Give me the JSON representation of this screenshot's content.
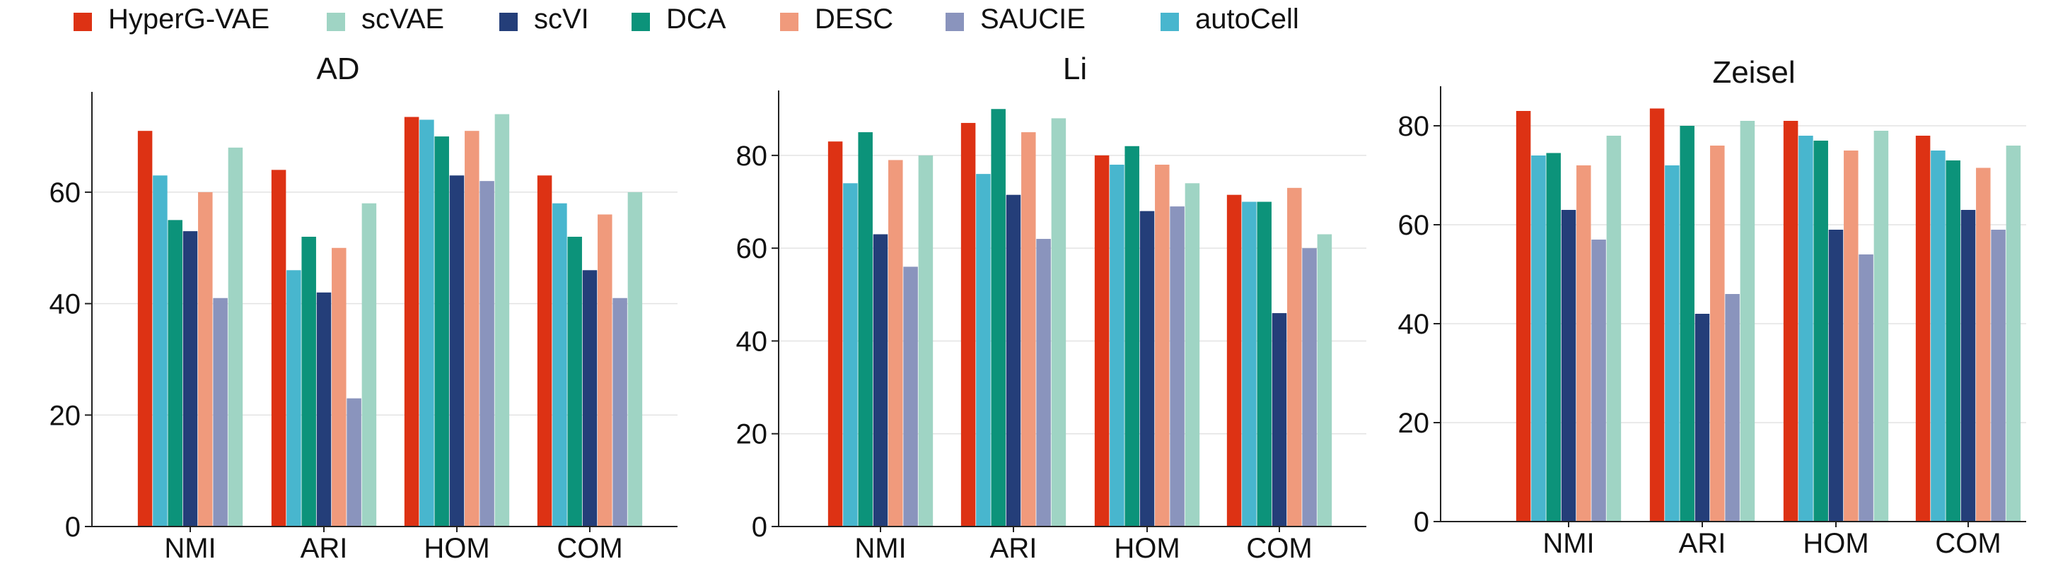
{
  "legend": {
    "placement": "top",
    "items": [
      {
        "label": "HyperG-VAE",
        "color": "#dd3214"
      },
      {
        "label": "scVAE",
        "color": "#9fd4c4"
      },
      {
        "label": "scVI",
        "color": "#243e79"
      },
      {
        "label": "DCA",
        "color": "#0c937a"
      },
      {
        "label": "DESC",
        "color": "#f09a7c"
      },
      {
        "label": "SAUCIE",
        "color": "#8a94bd"
      },
      {
        "label": "autoCell",
        "color": "#48b6ce"
      }
    ]
  },
  "chart_data": [
    {
      "type": "bar",
      "title": "AD",
      "categories": [
        "NMI",
        "ARI",
        "HOM",
        "COM"
      ],
      "ylim": [
        0,
        78
      ],
      "yticks": [
        0,
        20,
        40,
        60
      ],
      "grid": true,
      "series": [
        {
          "name": "HyperG-VAE",
          "values": [
            71,
            64,
            73.5,
            63
          ]
        },
        {
          "name": "autoCell",
          "values": [
            63,
            46,
            73,
            58
          ]
        },
        {
          "name": "DCA",
          "values": [
            55,
            52,
            70,
            52
          ]
        },
        {
          "name": "scVI",
          "values": [
            53,
            42,
            63,
            46
          ]
        },
        {
          "name": "DESC",
          "values": [
            60,
            50,
            71,
            56
          ]
        },
        {
          "name": "SAUCIE",
          "values": [
            41,
            23,
            62,
            41
          ]
        },
        {
          "name": "scVAE",
          "values": [
            68,
            58,
            74,
            60
          ]
        }
      ]
    },
    {
      "type": "bar",
      "title": "Li",
      "categories": [
        "NMI",
        "ARI",
        "HOM",
        "COM"
      ],
      "ylim": [
        0,
        94
      ],
      "yticks": [
        0,
        20,
        40,
        60,
        80
      ],
      "grid": true,
      "series": [
        {
          "name": "HyperG-VAE",
          "values": [
            83,
            87,
            80,
            71.5
          ]
        },
        {
          "name": "autoCell",
          "values": [
            74,
            76,
            78,
            70
          ]
        },
        {
          "name": "DCA",
          "values": [
            85,
            90,
            82,
            70
          ]
        },
        {
          "name": "scVI",
          "values": [
            63,
            71.5,
            68,
            46
          ]
        },
        {
          "name": "DESC",
          "values": [
            79,
            85,
            78,
            73
          ]
        },
        {
          "name": "SAUCIE",
          "values": [
            56,
            62,
            69,
            60
          ]
        },
        {
          "name": "scVAE",
          "values": [
            80,
            88,
            74,
            63
          ]
        }
      ]
    },
    {
      "type": "bar",
      "title": "Zeisel",
      "categories": [
        "NMI",
        "ARI",
        "HOM",
        "COM"
      ],
      "ylim": [
        0,
        88
      ],
      "yticks": [
        0,
        20,
        40,
        60,
        80
      ],
      "grid": true,
      "series": [
        {
          "name": "HyperG-VAE",
          "values": [
            83,
            83.5,
            81,
            78
          ]
        },
        {
          "name": "autoCell",
          "values": [
            74,
            72,
            78,
            75
          ]
        },
        {
          "name": "DCA",
          "values": [
            74.5,
            80,
            77,
            73
          ]
        },
        {
          "name": "scVI",
          "values": [
            63,
            42,
            59,
            63
          ]
        },
        {
          "name": "DESC",
          "values": [
            72,
            76,
            75,
            71.5
          ]
        },
        {
          "name": "SAUCIE",
          "values": [
            57,
            46,
            54,
            59
          ]
        },
        {
          "name": "scVAE",
          "values": [
            78,
            81,
            79,
            76
          ]
        }
      ]
    }
  ]
}
